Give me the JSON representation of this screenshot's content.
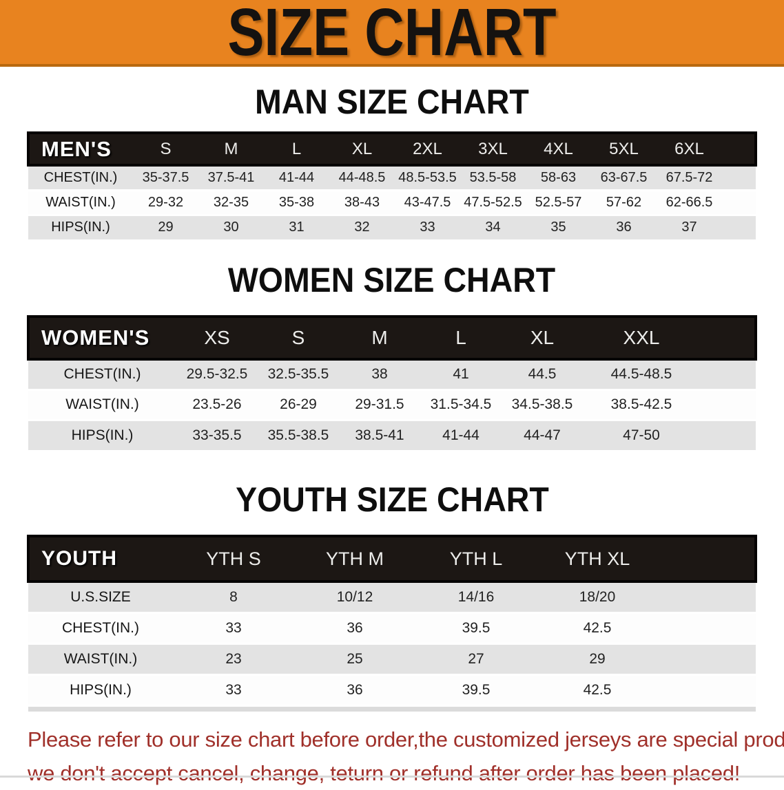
{
  "banner": {
    "title": "SIZE CHART",
    "bg_color": "#E8831F"
  },
  "sections": [
    {
      "heading": "MAN SIZE CHART",
      "table": {
        "header_label": "MEN'S",
        "columns": [
          "S",
          "M",
          "L",
          "XL",
          "2XL",
          "3XL",
          "4XL",
          "5XL",
          "6XL"
        ],
        "rows": [
          {
            "label": "CHEST(IN.)",
            "values": [
              "35-37.5",
              "37.5-41",
              "41-44",
              "44-48.5",
              "48.5-53.5",
              "53.5-58",
              "58-63",
              "63-67.5",
              "67.5-72"
            ]
          },
          {
            "label": "WAIST(IN.)",
            "values": [
              "29-32",
              "32-35",
              "35-38",
              "38-43",
              "43-47.5",
              "47.5-52.5",
              "52.5-57",
              "57-62",
              "62-66.5"
            ]
          },
          {
            "label": "HIPS(IN.)",
            "values": [
              "29",
              "30",
              "31",
              "32",
              "33",
              "34",
              "35",
              "36",
              "37"
            ]
          }
        ]
      }
    },
    {
      "heading": "WOMEN SIZE CHART",
      "table": {
        "header_label": "WOMEN'S",
        "columns": [
          "XS",
          "S",
          "M",
          "L",
          "XL",
          "XXL"
        ],
        "rows": [
          {
            "label": "CHEST(IN.)",
            "values": [
              "29.5-32.5",
              "32.5-35.5",
              "38",
              "41",
              "44.5",
              "44.5-48.5"
            ]
          },
          {
            "label": "WAIST(IN.)",
            "values": [
              "23.5-26",
              "26-29",
              "29-31.5",
              "31.5-34.5",
              "34.5-38.5",
              "38.5-42.5"
            ]
          },
          {
            "label": "HIPS(IN.)",
            "values": [
              "33-35.5",
              "35.5-38.5",
              "38.5-41",
              "41-44",
              "44-47",
              "47-50"
            ]
          }
        ]
      }
    },
    {
      "heading": "YOUTH SIZE CHART",
      "table": {
        "header_label": "YOUTH",
        "columns": [
          "YTH S",
          "YTH M",
          "YTH L",
          "YTH XL"
        ],
        "rows": [
          {
            "label": "U.S.SIZE",
            "values": [
              "8",
              "10/12",
              "14/16",
              "18/20"
            ]
          },
          {
            "label": "CHEST(IN.)",
            "values": [
              "33",
              "36",
              "39.5",
              "42.5"
            ]
          },
          {
            "label": "WAIST(IN.)",
            "values": [
              "23",
              "25",
              "27",
              "29"
            ]
          },
          {
            "label": "HIPS(IN.)",
            "values": [
              "33",
              "36",
              "39.5",
              "42.5"
            ]
          }
        ]
      }
    }
  ],
  "footer": {
    "line1": "Please refer to our size chart before order,the customized jerseys are special products,",
    "line2": "we don't accept cancel, change, teturn or refund after order has been placed!",
    "text_color": "#A0302A"
  }
}
